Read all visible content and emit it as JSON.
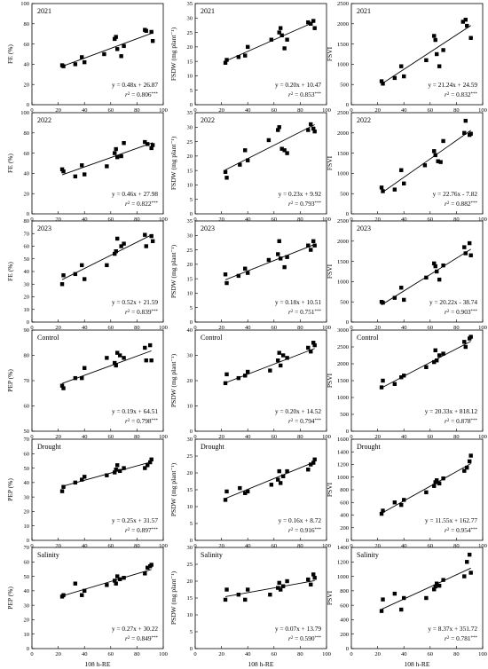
{
  "chart_data": [
    {
      "type": "scatter",
      "panel_label": "2021",
      "ylabel": "FE (%)",
      "xlim": [
        0,
        100
      ],
      "ylim": [
        0,
        100
      ],
      "yticks": [
        0,
        20,
        40,
        60,
        80,
        100
      ],
      "equation": "y = 0.48x + 26.87",
      "r2_value": "0.806",
      "significance": "***",
      "x": [
        23,
        24,
        33,
        38,
        40,
        55,
        63,
        64,
        65,
        68,
        70,
        86,
        87,
        91,
        92
      ],
      "y": [
        39,
        38,
        40,
        47,
        42,
        50,
        65,
        67,
        55,
        48,
        58,
        74,
        73,
        72,
        63
      ]
    },
    {
      "type": "scatter",
      "panel_label": "2021",
      "ylabel": "FSDW (mg plant⁻¹)",
      "xlim": [
        0,
        100
      ],
      "ylim": [
        0,
        35
      ],
      "yticks": [
        0,
        5,
        10,
        15,
        20,
        25,
        30,
        35
      ],
      "equation": "y = 0.20x + 10.47",
      "r2_value": "0.853",
      "significance": "***",
      "x": [
        23,
        24,
        33,
        38,
        40,
        58,
        64,
        65,
        66,
        68,
        70,
        86,
        88,
        90,
        91
      ],
      "y": [
        14.5,
        15.5,
        16.5,
        17,
        20,
        22.5,
        25,
        26.5,
        24,
        19.5,
        22.5,
        28.5,
        28,
        29,
        26.5
      ]
    },
    {
      "type": "scatter",
      "panel_label": "2021",
      "ylabel": "FSVI",
      "xlim": [
        0,
        100
      ],
      "ylim": [
        0,
        2500
      ],
      "yticks": [
        0,
        500,
        1000,
        1500,
        2000,
        2500
      ],
      "equation": "y = 21.24x + 24.59",
      "r2_value": "0.832",
      "significance": "***",
      "x": [
        23,
        24,
        33,
        38,
        40,
        57,
        63,
        64,
        65,
        67,
        70,
        85,
        87,
        88,
        91
      ],
      "y": [
        580,
        520,
        660,
        950,
        700,
        1100,
        1700,
        1600,
        1250,
        950,
        1350,
        2050,
        2100,
        1950,
        1650
      ]
    },
    {
      "type": "scatter",
      "panel_label": "2022",
      "ylabel": "FE (%)",
      "xlim": [
        0,
        100
      ],
      "ylim": [
        0,
        100
      ],
      "yticks": [
        0,
        20,
        40,
        60,
        80,
        100
      ],
      "equation": "y = 0.46x + 27.98",
      "r2_value": "0.822",
      "significance": "***",
      "x": [
        23,
        24,
        33,
        38,
        40,
        57,
        63,
        64,
        65,
        68,
        70,
        86,
        88,
        91,
        92
      ],
      "y": [
        44,
        42,
        37,
        48,
        39,
        47,
        60,
        64,
        56,
        57,
        70,
        71,
        69,
        65,
        68
      ]
    },
    {
      "type": "scatter",
      "panel_label": "2022",
      "ylabel": "FSDW (mg plant⁻¹)",
      "xlim": [
        0,
        100
      ],
      "ylim": [
        0,
        35
      ],
      "yticks": [
        0,
        5,
        10,
        15,
        20,
        25,
        30,
        35
      ],
      "equation": "y = 0.23x + 9.92",
      "r2_value": "0.793",
      "significance": "***",
      "x": [
        23,
        24,
        34,
        38,
        40,
        56,
        63,
        64,
        66,
        68,
        70,
        86,
        88,
        90,
        91
      ],
      "y": [
        14.5,
        12.5,
        17,
        22,
        18.5,
        25.5,
        29,
        30,
        22.5,
        22,
        21,
        29,
        31,
        29.5,
        28.5
      ]
    },
    {
      "type": "scatter",
      "panel_label": "2022",
      "ylabel": "FSVI",
      "xlim": [
        0,
        100
      ],
      "ylim": [
        0,
        2500
      ],
      "yticks": [
        0,
        500,
        1000,
        1500,
        2000,
        2500
      ],
      "equation": "y = 22.76x - 7.82",
      "r2_value": "0.882",
      "significance": "***",
      "x": [
        23,
        24,
        33,
        38,
        40,
        56,
        63,
        64,
        66,
        68,
        70,
        86,
        87,
        90,
        91
      ],
      "y": [
        650,
        560,
        600,
        1080,
        750,
        1200,
        1550,
        1450,
        1300,
        1280,
        1800,
        2000,
        2300,
        1950,
        1980
      ]
    },
    {
      "type": "scatter",
      "panel_label": "2023",
      "ylabel": "FE (%)",
      "xlim": [
        0,
        100
      ],
      "ylim": [
        0,
        80
      ],
      "yticks": [
        0,
        10,
        20,
        30,
        40,
        50,
        60,
        70,
        80
      ],
      "equation": "y = 0.52x + 21.59",
      "r2_value": "0.839",
      "significance": "***",
      "x": [
        23,
        24,
        33,
        38,
        40,
        57,
        63,
        64,
        65,
        68,
        70,
        86,
        87,
        91,
        92
      ],
      "y": [
        30,
        37,
        38,
        45,
        34,
        45,
        54,
        56,
        66,
        60,
        62,
        69,
        60,
        68,
        64
      ]
    },
    {
      "type": "scatter",
      "panel_label": "2023",
      "ylabel": "PSDW (mg plant⁻¹)",
      "xlim": [
        0,
        100
      ],
      "ylim": [
        0,
        35
      ],
      "yticks": [
        0,
        5,
        10,
        15,
        20,
        25,
        30,
        35
      ],
      "equation": "y = 0.18x + 10.51",
      "r2_value": "0.751",
      "significance": "***",
      "x": [
        23,
        24,
        33,
        38,
        40,
        56,
        63,
        64,
        65,
        68,
        70,
        86,
        88,
        90,
        91
      ],
      "y": [
        16.5,
        13.5,
        16,
        18.5,
        17,
        21.5,
        23.5,
        28,
        22,
        19,
        22.5,
        26.5,
        25,
        28,
        26.5
      ]
    },
    {
      "type": "scatter",
      "panel_label": "2023",
      "ylabel": "FSVI",
      "xlim": [
        0,
        100
      ],
      "ylim": [
        0,
        2500
      ],
      "yticks": [
        0,
        500,
        1000,
        1500,
        2000,
        2500
      ],
      "equation": "y = 20.22x - 38.74",
      "r2_value": "0.903",
      "significance": "***",
      "x": [
        23,
        24,
        33,
        38,
        40,
        57,
        63,
        64,
        65,
        67,
        70,
        86,
        87,
        90,
        91
      ],
      "y": [
        500,
        480,
        600,
        850,
        550,
        1100,
        1450,
        1380,
        1250,
        1050,
        1400,
        1850,
        1700,
        1950,
        1650
      ]
    },
    {
      "type": "scatter",
      "panel_label": "Control",
      "ylabel": "PEP (%)",
      "xlim": [
        0,
        100
      ],
      "ylim": [
        50,
        90
      ],
      "yticks": [
        50,
        60,
        70,
        80,
        90
      ],
      "equation": "y = 0.19x + 64.51",
      "r2_value": "0.798",
      "significance": "***",
      "x": [
        23,
        24,
        33,
        38,
        40,
        57,
        63,
        64,
        65,
        67,
        70,
        86,
        87,
        90,
        91
      ],
      "y": [
        68,
        67,
        71,
        71,
        75,
        79,
        77,
        76,
        81,
        80,
        79,
        83,
        78,
        84,
        78
      ]
    },
    {
      "type": "scatter",
      "panel_label": "Control",
      "ylabel": "PSDW (mg plant⁻¹)",
      "xlim": [
        0,
        100
      ],
      "ylim": [
        0,
        40
      ],
      "yticks": [
        0,
        10,
        20,
        30,
        40
      ],
      "equation": "y = 0.20x + 14.52",
      "r2_value": "0.794",
      "significance": "***",
      "x": [
        23,
        24,
        33,
        38,
        40,
        57,
        63,
        64,
        65,
        67,
        70,
        86,
        88,
        90,
        91
      ],
      "y": [
        19,
        22.5,
        21,
        22,
        23.5,
        24,
        28,
        31,
        26,
        30,
        29,
        33,
        31.5,
        35,
        34
      ]
    },
    {
      "type": "scatter",
      "panel_label": "Control",
      "ylabel": "PSVI",
      "xlim": [
        0,
        100
      ],
      "ylim": [
        0,
        3000
      ],
      "yticks": [
        0,
        500,
        1000,
        1500,
        2000,
        2500,
        3000
      ],
      "equation": "y = 20.33x + 818.12",
      "r2_value": "0.878",
      "significance": "***",
      "x": [
        23,
        24,
        33,
        38,
        40,
        57,
        63,
        64,
        65,
        67,
        70,
        86,
        87,
        90,
        91
      ],
      "y": [
        1300,
        1500,
        1400,
        1600,
        1650,
        1900,
        2050,
        2400,
        2100,
        2250,
        2300,
        2650,
        2500,
        2750,
        2800
      ]
    },
    {
      "type": "scatter",
      "panel_label": "Drought",
      "ylabel": "PEP (%)",
      "xlim": [
        0,
        100
      ],
      "ylim": [
        0,
        70
      ],
      "yticks": [
        0,
        10,
        20,
        30,
        40,
        50,
        60,
        70
      ],
      "equation": "y = 0.25x + 31.57",
      "r2_value": "0.897",
      "significance": "***",
      "x": [
        23,
        24,
        33,
        38,
        40,
        57,
        63,
        64,
        65,
        67,
        70,
        86,
        88,
        90,
        91
      ],
      "y": [
        34,
        37,
        40,
        42,
        44,
        45,
        47,
        49,
        52,
        48,
        50,
        50,
        52,
        54,
        56
      ]
    },
    {
      "type": "scatter",
      "panel_label": "Drought",
      "ylabel": "PSDW (mg plant⁻¹)",
      "xlim": [
        0,
        100
      ],
      "ylim": [
        0,
        30
      ],
      "yticks": [
        0,
        5,
        10,
        15,
        20,
        25,
        30
      ],
      "equation": "y = 0.16x + 8.72",
      "r2_value": "0.916",
      "significance": "***",
      "x": [
        23,
        24,
        34,
        38,
        40,
        58,
        63,
        64,
        65,
        67,
        70,
        86,
        88,
        90,
        91
      ],
      "y": [
        12,
        14.5,
        15.5,
        14,
        14.5,
        16.5,
        18,
        20.5,
        17,
        19,
        20.5,
        21,
        22.5,
        23,
        24
      ]
    },
    {
      "type": "scatter",
      "panel_label": "Drought",
      "ylabel": "PSVI",
      "xlim": [
        0,
        100
      ],
      "ylim": [
        0,
        1600
      ],
      "yticks": [
        0,
        200,
        400,
        600,
        800,
        1000,
        1200,
        1400,
        1600
      ],
      "equation": "y = 11.55x + 162.77",
      "r2_value": "0.954",
      "significance": "***",
      "x": [
        23,
        24,
        33,
        38,
        40,
        57,
        63,
        64,
        65,
        67,
        70,
        86,
        88,
        90,
        91
      ],
      "y": [
        420,
        470,
        600,
        560,
        640,
        760,
        860,
        920,
        950,
        900,
        980,
        1100,
        1150,
        1250,
        1340
      ]
    },
    {
      "type": "scatter",
      "panel_label": "Salinity",
      "ylabel": "PEP (%)",
      "xlim": [
        0,
        100
      ],
      "ylim": [
        0,
        70
      ],
      "yticks": [
        0,
        10,
        20,
        30,
        40,
        50,
        60,
        70
      ],
      "equation": "y = 0.27x + 30.22",
      "r2_value": "0.849",
      "significance": "***",
      "x": [
        23,
        24,
        33,
        38,
        40,
        57,
        63,
        64,
        65,
        67,
        70,
        86,
        88,
        90,
        91
      ],
      "y": [
        36,
        37,
        45,
        37,
        40,
        44,
        47,
        45,
        50,
        48,
        49,
        52,
        56,
        57,
        58
      ]
    },
    {
      "type": "scatter",
      "panel_label": "Salinity",
      "ylabel": "PSDW (mg plant⁻¹)",
      "xlim": [
        0,
        100
      ],
      "ylim": [
        0,
        30
      ],
      "yticks": [
        0,
        5,
        10,
        15,
        20,
        25,
        30
      ],
      "equation": "y = 0.07x + 13.79",
      "r2_value": "0.590",
      "significance": "***",
      "x": [
        23,
        24,
        33,
        38,
        40,
        57,
        63,
        64,
        65,
        67,
        70,
        86,
        88,
        90,
        91
      ],
      "y": [
        14.5,
        17.5,
        16,
        14.5,
        17.5,
        16,
        18,
        19.5,
        17.5,
        18.5,
        20,
        20.5,
        19,
        22,
        21
      ]
    },
    {
      "type": "scatter",
      "panel_label": "Salinity",
      "ylabel": "PSVI",
      "xlim": [
        0,
        100
      ],
      "ylim": [
        0,
        1400
      ],
      "yticks": [
        0,
        200,
        400,
        600,
        800,
        1000,
        1200,
        1400
      ],
      "equation": "y = 8.37x + 351.72",
      "r2_value": "0.781",
      "significance": "***",
      "x": [
        23,
        24,
        33,
        38,
        40,
        57,
        63,
        64,
        65,
        67,
        70,
        86,
        88,
        90,
        91
      ],
      "y": [
        520,
        680,
        760,
        540,
        700,
        700,
        820,
        860,
        900,
        870,
        950,
        1000,
        1200,
        1300,
        1050
      ]
    }
  ],
  "shared": {
    "xlabel": "108 h-RE",
    "xticks": [
      0,
      20,
      40,
      60,
      80,
      100
    ],
    "r2_prefix": "r"
  }
}
